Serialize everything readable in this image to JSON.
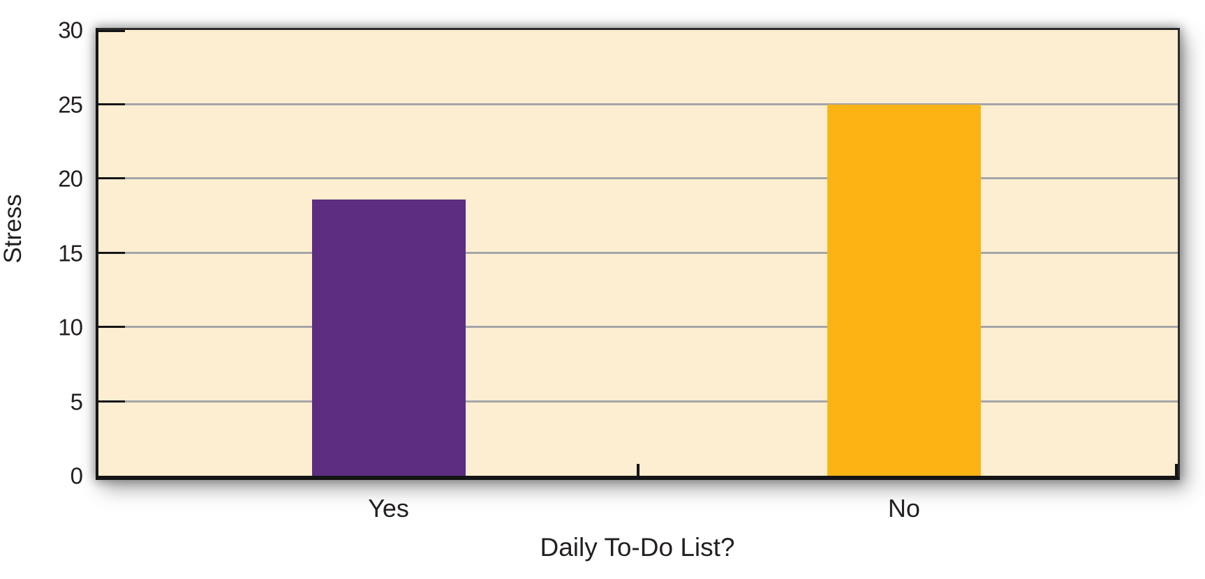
{
  "chart_data": {
    "type": "bar",
    "categories": [
      "Yes",
      "No"
    ],
    "values": [
      18.6,
      25
    ],
    "bar_colors": [
      "#5c2d80",
      "#fcb415"
    ],
    "title": "",
    "xlabel": "Daily To-Do List?",
    "ylabel": "Stress",
    "ylim": [
      0,
      30
    ],
    "yticks": [
      0,
      5,
      10,
      15,
      20,
      25,
      30
    ],
    "grid": "horizontal gridlines at each y tick",
    "legend": "none",
    "plot_bg_color": "#fdeed1",
    "gridline_color": "#a5a5a8",
    "axis_color": "#151515",
    "text_color": "#231f20"
  }
}
